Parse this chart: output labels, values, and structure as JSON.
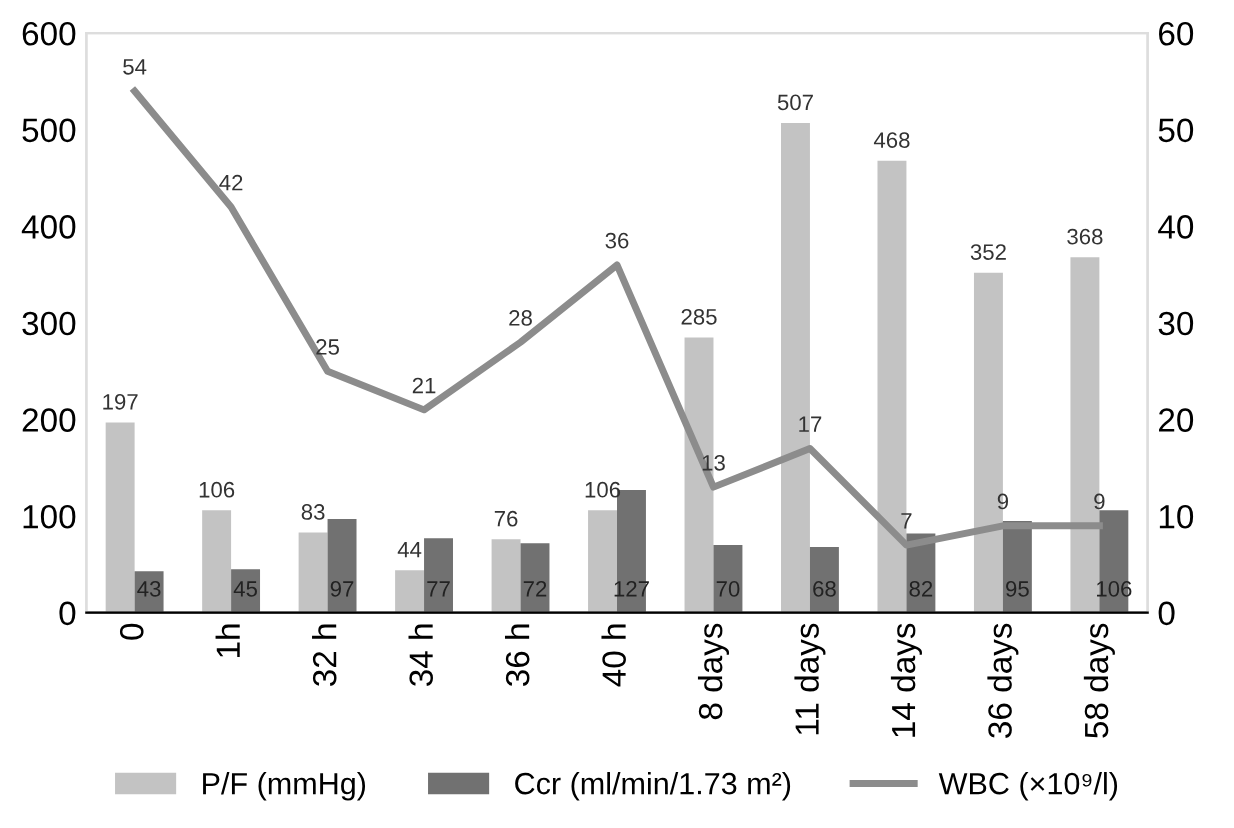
{
  "chart_data": {
    "type": "bar",
    "categories": [
      "0",
      "1h",
      "32 h",
      "34 h",
      "36 h",
      "40 h",
      "8 days",
      "11 days",
      "14 days",
      "36 days",
      "58 days"
    ],
    "series": [
      {
        "name": "P/F (mmHg)",
        "color": "#c3c3c3",
        "values": [
          197,
          106,
          83,
          44,
          76,
          106,
          285,
          507,
          468,
          352,
          368
        ]
      },
      {
        "name": "Ccr (ml/min/1.73 m²)",
        "color": "#717171",
        "values": [
          43,
          45,
          97,
          77,
          72,
          127,
          70,
          68,
          82,
          95,
          106
        ]
      },
      {
        "name": "WBC (×10⁹/l)",
        "color": "#8c8c8c",
        "type": "line",
        "axis": "y2",
        "values": [
          54,
          42,
          25,
          21,
          28,
          36,
          13,
          17,
          7,
          9,
          9
        ]
      }
    ],
    "ylim": [
      0,
      600
    ],
    "yticks": [
      0,
      100,
      200,
      300,
      400,
      500,
      600
    ],
    "y2lim": [
      0,
      60
    ],
    "y2ticks": [
      0,
      10,
      20,
      30,
      40,
      50,
      60
    ],
    "data_labels": true,
    "legend": "bottom",
    "grid": false,
    "marker": "none",
    "line_style": "solid"
  }
}
